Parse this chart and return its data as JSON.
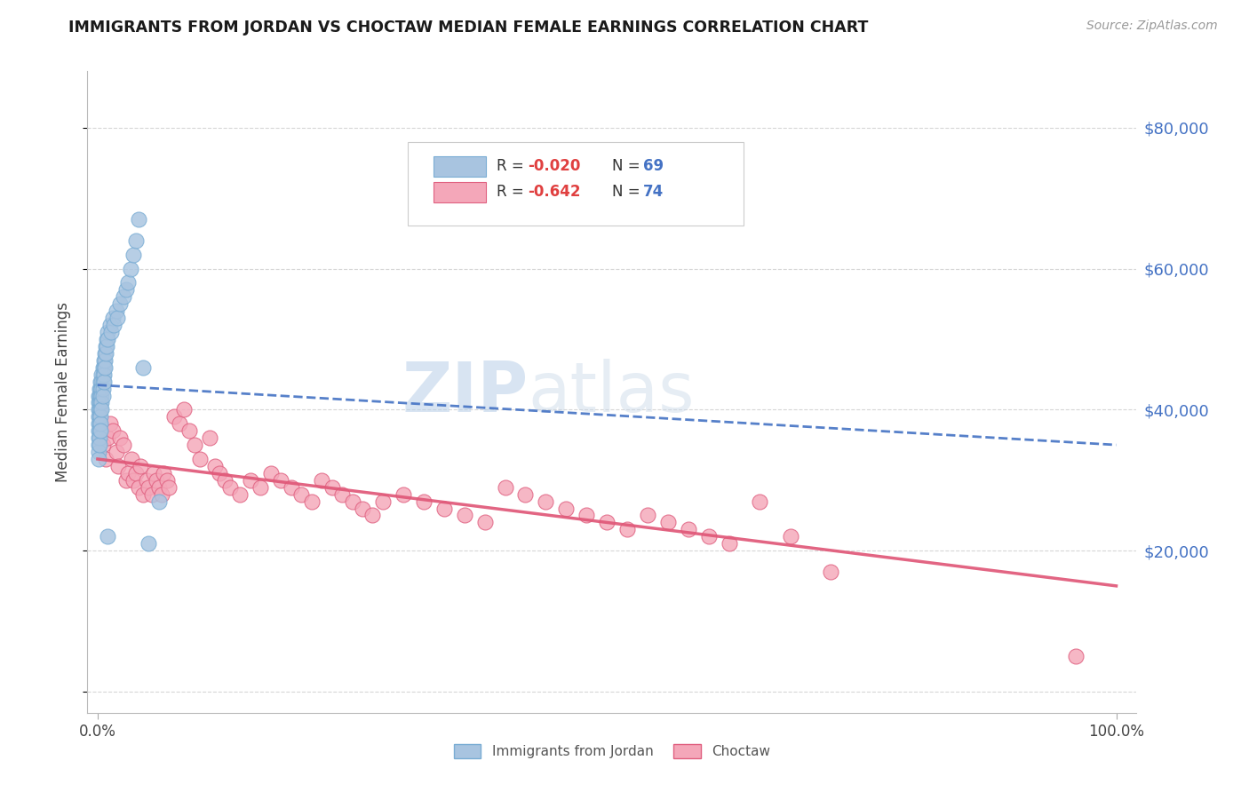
{
  "title": "IMMIGRANTS FROM JORDAN VS CHOCTAW MEDIAN FEMALE EARNINGS CORRELATION CHART",
  "source": "Source: ZipAtlas.com",
  "ylabel": "Median Female Earnings",
  "legend_r1": "-0.020",
  "legend_n1": "69",
  "legend_r2": "-0.642",
  "legend_n2": "74",
  "color_jordan": "#a8c4e0",
  "color_jordan_edge": "#7aadd4",
  "color_choctaw": "#f4a7b9",
  "color_choctaw_edge": "#e06080",
  "trendline_jordan": "#4472c4",
  "trendline_choctaw": "#e05878",
  "background": "#ffffff",
  "watermark_zip": "ZIP",
  "watermark_atlas": "atlas",
  "jordan_x": [
    0.001,
    0.001,
    0.001,
    0.001,
    0.001,
    0.001,
    0.001,
    0.001,
    0.001,
    0.001,
    0.002,
    0.002,
    0.002,
    0.002,
    0.002,
    0.002,
    0.002,
    0.002,
    0.002,
    0.003,
    0.003,
    0.003,
    0.003,
    0.003,
    0.003,
    0.003,
    0.003,
    0.004,
    0.004,
    0.004,
    0.004,
    0.004,
    0.004,
    0.005,
    0.005,
    0.005,
    0.005,
    0.005,
    0.006,
    0.006,
    0.006,
    0.006,
    0.007,
    0.007,
    0.007,
    0.008,
    0.008,
    0.009,
    0.009,
    0.01,
    0.01,
    0.012,
    0.013,
    0.015,
    0.016,
    0.018,
    0.019,
    0.022,
    0.025,
    0.028,
    0.03,
    0.032,
    0.035,
    0.038,
    0.04,
    0.045,
    0.05,
    0.06,
    0.01
  ],
  "jordan_y": [
    42000,
    41000,
    40000,
    39000,
    38000,
    37000,
    36000,
    35000,
    34000,
    33000,
    43000,
    42000,
    41000,
    40000,
    39000,
    38000,
    37000,
    36000,
    35000,
    44000,
    43000,
    42000,
    41000,
    40000,
    39000,
    38000,
    37000,
    45000,
    44000,
    43000,
    42000,
    41000,
    40000,
    46000,
    45000,
    44000,
    43000,
    42000,
    47000,
    46000,
    45000,
    44000,
    48000,
    47000,
    46000,
    49000,
    48000,
    50000,
    49000,
    51000,
    50000,
    52000,
    51000,
    53000,
    52000,
    54000,
    53000,
    55000,
    56000,
    57000,
    58000,
    60000,
    62000,
    64000,
    67000,
    46000,
    21000,
    27000,
    22000
  ],
  "choctaw_x": [
    0.005,
    0.008,
    0.01,
    0.012,
    0.015,
    0.018,
    0.02,
    0.022,
    0.025,
    0.028,
    0.03,
    0.033,
    0.035,
    0.038,
    0.04,
    0.042,
    0.045,
    0.048,
    0.05,
    0.053,
    0.055,
    0.058,
    0.06,
    0.063,
    0.065,
    0.068,
    0.07,
    0.075,
    0.08,
    0.085,
    0.09,
    0.095,
    0.1,
    0.11,
    0.115,
    0.12,
    0.125,
    0.13,
    0.14,
    0.15,
    0.16,
    0.17,
    0.18,
    0.19,
    0.2,
    0.21,
    0.22,
    0.23,
    0.24,
    0.25,
    0.26,
    0.27,
    0.28,
    0.3,
    0.32,
    0.34,
    0.36,
    0.38,
    0.4,
    0.42,
    0.44,
    0.46,
    0.48,
    0.5,
    0.52,
    0.54,
    0.56,
    0.58,
    0.6,
    0.62,
    0.65,
    0.68,
    0.72,
    0.96
  ],
  "choctaw_y": [
    35000,
    33000,
    36000,
    38000,
    37000,
    34000,
    32000,
    36000,
    35000,
    30000,
    31000,
    33000,
    30000,
    31000,
    29000,
    32000,
    28000,
    30000,
    29000,
    28000,
    31000,
    30000,
    29000,
    28000,
    31000,
    30000,
    29000,
    39000,
    38000,
    40000,
    37000,
    35000,
    33000,
    36000,
    32000,
    31000,
    30000,
    29000,
    28000,
    30000,
    29000,
    31000,
    30000,
    29000,
    28000,
    27000,
    30000,
    29000,
    28000,
    27000,
    26000,
    25000,
    27000,
    28000,
    27000,
    26000,
    25000,
    24000,
    29000,
    28000,
    27000,
    26000,
    25000,
    24000,
    23000,
    25000,
    24000,
    23000,
    22000,
    21000,
    27000,
    22000,
    17000,
    5000
  ],
  "jordan_trendline_x": [
    0.0,
    1.0
  ],
  "jordan_trendline_y": [
    43500,
    35000
  ],
  "choctaw_trendline_x": [
    0.0,
    1.0
  ],
  "choctaw_trendline_y": [
    33000,
    15000
  ],
  "xlim": [
    -0.01,
    1.02
  ],
  "ylim": [
    -3000,
    88000
  ],
  "yticks": [
    0,
    20000,
    40000,
    60000,
    80000
  ],
  "ytick_right_labels": [
    "",
    "$20,000",
    "$40,000",
    "$60,000",
    "$80,000"
  ],
  "xticks": [
    0.0,
    1.0
  ],
  "xtick_labels": [
    "0.0%",
    "100.0%"
  ]
}
